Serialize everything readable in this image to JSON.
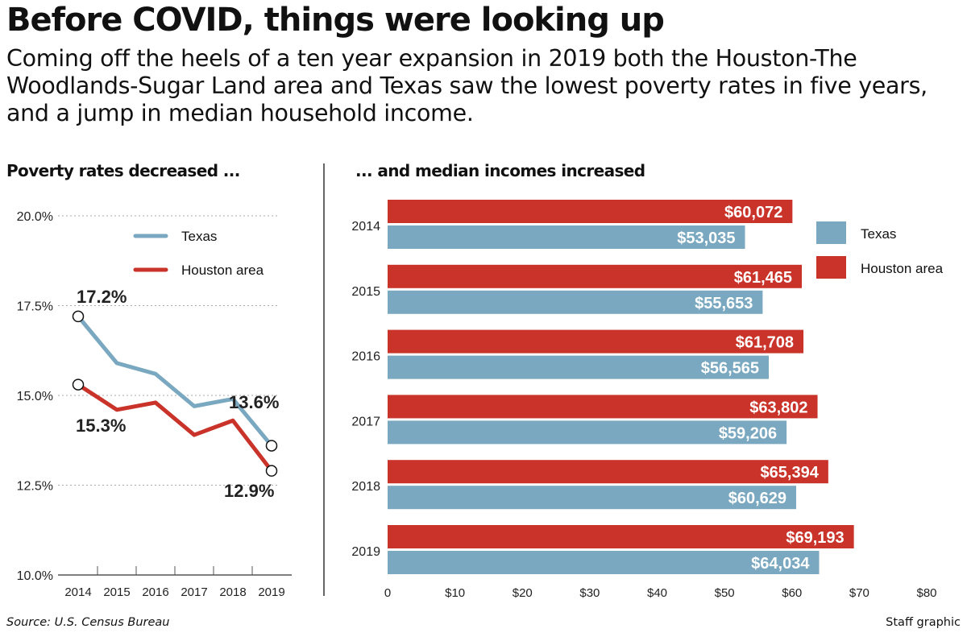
{
  "title": "Before COVID, things were looking up",
  "subtitle": "Coming off the heels of a ten year expansion in 2019 both the Houston-The Woodlands-Sugar Land area and Texas saw the lowest poverty rates in five years, and a jump in median household income.",
  "footer": {
    "source": "Source: U.S. Census Bureau",
    "credit": "Staff graphic"
  },
  "colors": {
    "texas": "#7aa8c0",
    "houston": "#c9332a"
  },
  "chart_data": [
    {
      "type": "line",
      "title": "Poverty rates decreased ...",
      "x": [
        "2014",
        "2015",
        "2016",
        "2017",
        "2018",
        "2019"
      ],
      "ylim": [
        10,
        20
      ],
      "yticks": [
        "10.0%",
        "12.5%",
        "15.0%",
        "17.5%",
        "20.0%"
      ],
      "ytick_values": [
        10,
        12.5,
        15,
        17.5,
        20
      ],
      "grid": true,
      "legend": "top-right",
      "series": [
        {
          "name": "Texas",
          "values": [
            17.2,
            15.9,
            15.6,
            14.7,
            14.9,
            13.6
          ],
          "labels": {
            "0": "17.2%",
            "5": "13.6%"
          }
        },
        {
          "name": "Houston area",
          "values": [
            15.3,
            14.6,
            14.8,
            13.9,
            14.3,
            12.9
          ],
          "labels": {
            "0": "15.3%",
            "5": "12.9%"
          }
        }
      ]
    },
    {
      "type": "bar",
      "orientation": "horizontal",
      "title": "... and median incomes increased",
      "categories": [
        "2014",
        "2015",
        "2016",
        "2017",
        "2018",
        "2019"
      ],
      "xlim": [
        0,
        80
      ],
      "xticks": [
        "0",
        "$10",
        "$20",
        "$30",
        "$40",
        "$50",
        "$60",
        "$70",
        "$80"
      ],
      "xtick_values": [
        0,
        10,
        20,
        30,
        40,
        50,
        60,
        70,
        80
      ],
      "legend": "top-right",
      "series": [
        {
          "name": "Houston area",
          "values": [
            60072,
            61465,
            61708,
            63802,
            65394,
            69193
          ],
          "labels": [
            "$60,072",
            "$61,465",
            "$61,708",
            "$63,802",
            "$65,394",
            "$69,193"
          ]
        },
        {
          "name": "Texas",
          "values": [
            53035,
            55653,
            56565,
            59206,
            60629,
            64034
          ],
          "labels": [
            "$53,035",
            "$55,653",
            "$56,565",
            "$59,206",
            "$60,629",
            "$64,034"
          ]
        }
      ]
    }
  ]
}
